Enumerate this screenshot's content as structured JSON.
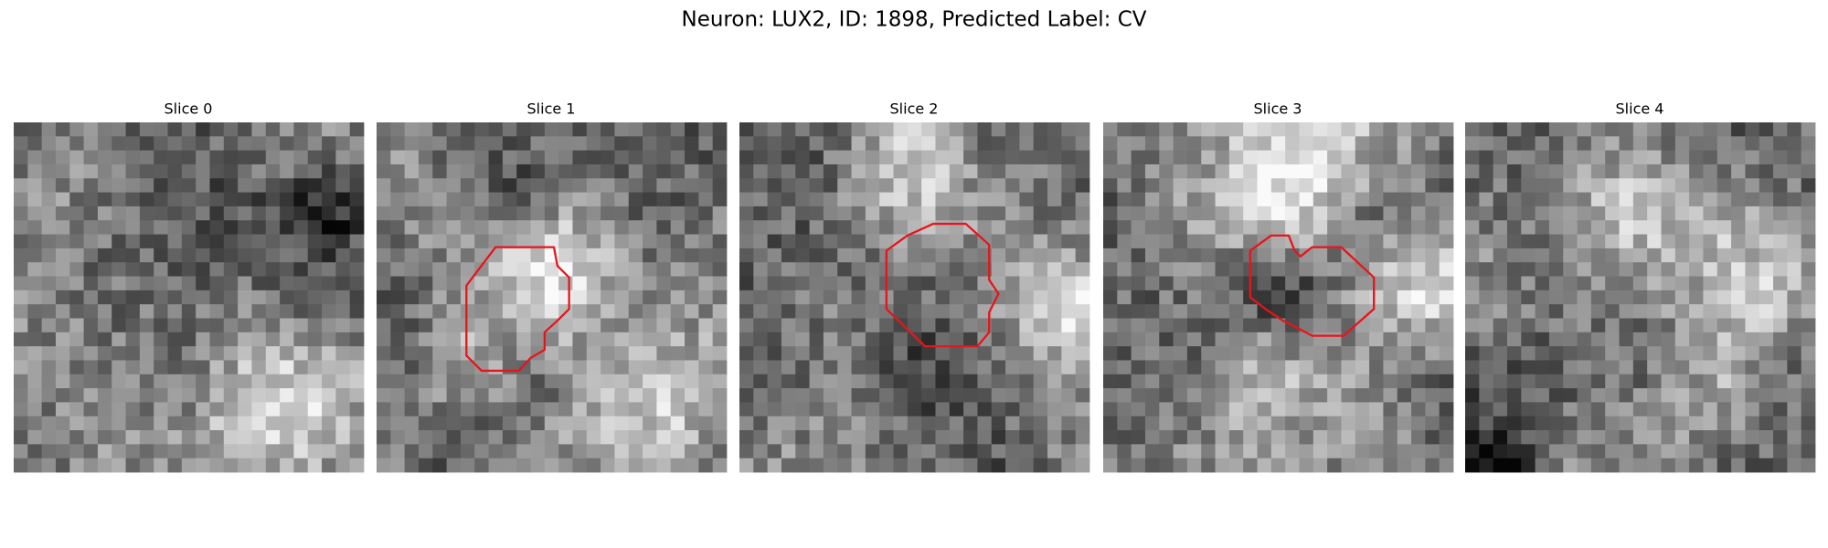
{
  "header": {
    "title": "Neuron: LUX2, ID: 1898, Predicted Label: CV"
  },
  "panels": [
    {
      "title": "Slice 0"
    },
    {
      "title": "Slice 1"
    },
    {
      "title": "Slice 2"
    },
    {
      "title": "Slice 3"
    },
    {
      "title": "Slice 4"
    }
  ]
}
